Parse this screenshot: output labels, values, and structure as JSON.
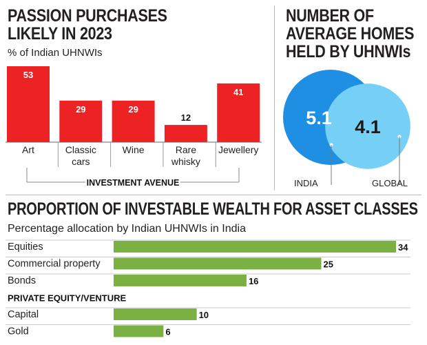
{
  "passion": {
    "title_line1": "PASSION PURCHASES",
    "title_line2": "LIKELY IN 2023",
    "subtitle": "% of Indian UHNWIs",
    "axis_caption": "INVESTMENT AVENUE"
  },
  "homes": {
    "title_line1": "NUMBER OF",
    "title_line2": "AVERAGE HOMES",
    "title_line3": "HELD BY UHNWIs"
  },
  "wealth": {
    "title": "PROPORTION OF INVESTABLE WEALTH FOR ASSET CLASSES",
    "subtitle": "Percentage allocation by Indian UHNWIs in India",
    "group_label": "PRIVATE EQUITY/VENTURE"
  },
  "colors": {
    "red": "#ed2224",
    "green": "#7bb142",
    "circle_india": "#1f8fe3",
    "circle_global": "#76cff5"
  },
  "chart_data": [
    {
      "type": "bar",
      "title": "PASSION PURCHASES LIKELY IN 2023",
      "subtitle": "% of Indian UHNWIs",
      "xlabel": "INVESTMENT AVENUE",
      "ylabel": "",
      "categories": [
        "Art",
        "Classic cars",
        "Wine",
        "Rare whisky",
        "Jewellery"
      ],
      "category_lines": [
        [
          "Art"
        ],
        [
          "Classic",
          "cars"
        ],
        [
          "Wine"
        ],
        [
          "Rare",
          "whisky"
        ],
        [
          "Jewellery"
        ]
      ],
      "values": [
        53,
        29,
        29,
        12,
        41
      ],
      "ylim": [
        0,
        53
      ],
      "grid": false
    },
    {
      "type": "bubble",
      "title": "NUMBER OF AVERAGE HOMES HELD BY UHNWIs",
      "categories": [
        "INDIA",
        "GLOBAL"
      ],
      "values": [
        5.1,
        4.1
      ],
      "value_labels": [
        "5.1",
        "4.1"
      ]
    },
    {
      "type": "bar",
      "orientation": "horizontal",
      "title": "PROPORTION OF INVESTABLE WEALTH FOR ASSET CLASSES",
      "subtitle": "Percentage allocation by Indian UHNWIs in India",
      "categories": [
        "Equities",
        "Commercial property",
        "Bonds",
        "Capital",
        "Gold"
      ],
      "groups": [
        "",
        "",
        "",
        "PRIVATE EQUITY/VENTURE",
        "PRIVATE EQUITY/VENTURE"
      ],
      "values": [
        34,
        25,
        16,
        10,
        6
      ],
      "xlim": [
        0,
        34
      ],
      "grid": false
    }
  ]
}
